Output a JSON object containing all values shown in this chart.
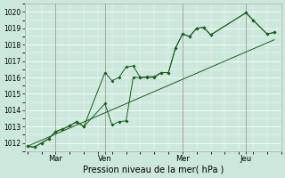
{
  "xlabel": "Pression niveau de la mer( hPa )",
  "bg_color": "#cce8dc",
  "grid_color": "#ffffff",
  "line_color": "#1a5e1a",
  "ylim": [
    1011.5,
    1020.5
  ],
  "yticks": [
    1012,
    1013,
    1014,
    1015,
    1016,
    1017,
    1018,
    1019,
    1020
  ],
  "xtick_labels": [
    "Mar",
    "Ven",
    "Mer",
    "Jeu"
  ],
  "xtick_positions": [
    2.0,
    5.5,
    11.0,
    15.5
  ],
  "xlim": [
    -0.2,
    18.0
  ],
  "series1_x": [
    0.0,
    0.5,
    1.0,
    1.5,
    2.0,
    2.5,
    3.0,
    3.5,
    4.0,
    5.5,
    6.0,
    6.5,
    7.0,
    7.5,
    8.0,
    8.5,
    9.0,
    9.5,
    10.0,
    10.5,
    11.0,
    11.5,
    12.0,
    12.5,
    13.0,
    15.5,
    16.0,
    17.0,
    17.5
  ],
  "series1_y": [
    1011.8,
    1011.75,
    1012.0,
    1012.25,
    1012.7,
    1012.85,
    1013.05,
    1013.3,
    1013.0,
    1016.3,
    1015.8,
    1016.0,
    1016.65,
    1016.7,
    1016.0,
    1016.05,
    1016.05,
    1016.3,
    1016.3,
    1017.8,
    1018.65,
    1018.5,
    1019.0,
    1019.05,
    1018.6,
    1019.95,
    1019.5,
    1018.65,
    1018.75
  ],
  "series2_x": [
    0.0,
    0.5,
    1.0,
    1.5,
    2.0,
    2.5,
    3.0,
    3.5,
    4.0,
    5.5,
    6.0,
    6.5,
    7.0,
    7.5,
    8.0,
    8.5,
    9.0,
    9.5,
    10.0,
    10.5,
    11.0,
    11.5,
    12.0,
    12.5,
    13.0,
    15.5,
    16.0,
    17.0,
    17.5
  ],
  "series2_y": [
    1011.8,
    1011.75,
    1012.0,
    1012.25,
    1012.7,
    1012.85,
    1013.05,
    1013.3,
    1013.0,
    1014.4,
    1013.1,
    1013.3,
    1013.35,
    1016.0,
    1016.0,
    1016.0,
    1016.0,
    1016.3,
    1016.3,
    1017.8,
    1018.65,
    1018.5,
    1019.0,
    1019.05,
    1018.6,
    1019.95,
    1019.5,
    1018.65,
    1018.75
  ],
  "trend_x": [
    0.0,
    17.5
  ],
  "trend_y": [
    1011.8,
    1018.3
  ],
  "vline_color": "#888888",
  "ytick_fontsize": 5.5,
  "xtick_fontsize": 6,
  "xlabel_fontsize": 7
}
